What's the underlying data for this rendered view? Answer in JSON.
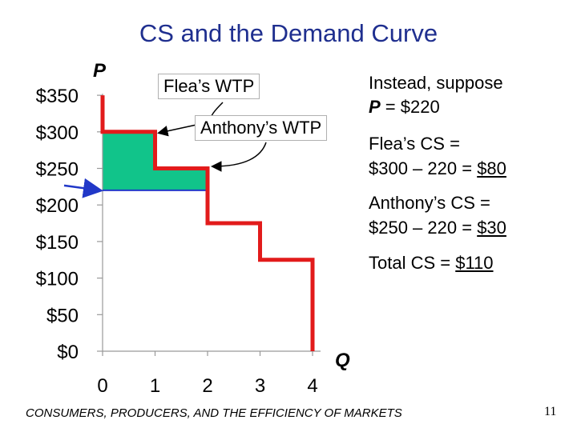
{
  "title": "CS and the Demand Curve",
  "chart_data": {
    "type": "line",
    "subtype": "step-demand",
    "ylabel": "P",
    "xlabel": "Q",
    "xlim": [
      0,
      4
    ],
    "ylim": [
      0,
      350
    ],
    "x_ticks": [
      "0",
      "1",
      "2",
      "3",
      "4"
    ],
    "y_ticks": [
      "$0",
      "$50",
      "$100",
      "$150",
      "$200",
      "$250",
      "$300",
      "$350"
    ],
    "demand_steps": [
      {
        "buyer": "Flea",
        "q_from": 0,
        "q_to": 1,
        "wtp": 300
      },
      {
        "buyer": "Anthony",
        "q_from": 1,
        "q_to": 2,
        "wtp": 250
      },
      {
        "buyer": "",
        "q_from": 2,
        "q_to": 3,
        "wtp": 175
      },
      {
        "buyer": "",
        "q_from": 3,
        "q_to": 4,
        "wtp": 125
      }
    ],
    "price": 220,
    "cs_region": {
      "q_to": 2,
      "price": 220
    }
  },
  "annotations": {
    "flea_wtp": "Flea’s WTP",
    "anthony_wtp": "Anthony’s WTP"
  },
  "text_block": {
    "instead_line1": "Instead, suppose",
    "instead_line2_prefix": "P",
    "instead_line2_rest": " = $220",
    "flea_cs_label": "Flea’s CS =",
    "flea_cs_calc": "$300 – 220 = ",
    "flea_cs_value": "$80",
    "anthony_cs_label": "Anthony’s CS =",
    "anthony_cs_calc": "$250 – 220 = ",
    "anthony_cs_value": "$30",
    "total_cs_label": "Total CS = ",
    "total_cs_value": "$110"
  },
  "footer": "CONSUMERS, PRODUCERS, AND THE EFFICIENCY OF MARKETS",
  "page_number": "11",
  "colors": {
    "title": "#1f2f8f",
    "demand": "#e21b1b",
    "cs_fill": "#11c48a",
    "price_line": "#2138c8",
    "arrow": "#2138c8",
    "axis": "#999999"
  }
}
